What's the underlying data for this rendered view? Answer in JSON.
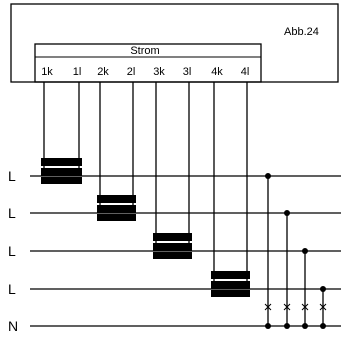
{
  "figure_label": "Abb.24",
  "block_title": "Strom",
  "terminals": [
    "1k",
    "1l",
    "2k",
    "2l",
    "3k",
    "3l",
    "4k",
    "4l"
  ],
  "conductors": [
    "L",
    "L",
    "L",
    "L",
    "N"
  ]
}
